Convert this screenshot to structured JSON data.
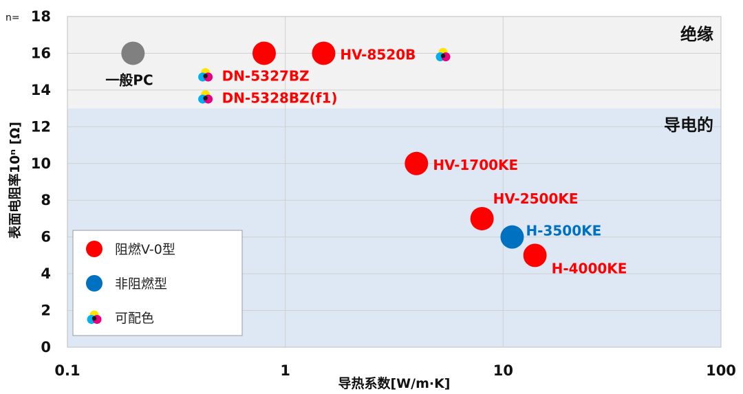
{
  "chart_data": {
    "type": "scatter",
    "x_scale": "log",
    "xlim": [
      0.1,
      100
    ],
    "ylim": [
      0,
      18
    ],
    "xlabel": "导热系数[W/m·K]",
    "ylabel": "表面电阻率10ⁿ [Ω]",
    "y_prefix": "n=",
    "x_ticks": [
      "0.1",
      "1",
      "10",
      "100"
    ],
    "y_ticks": [
      "0",
      "2",
      "4",
      "6",
      "8",
      "10",
      "12",
      "14",
      "16",
      "18"
    ],
    "grid": true,
    "regions": [
      {
        "label": "绝缘",
        "y_range": [
          13,
          18
        ],
        "color": "#f2f2f2"
      },
      {
        "label": "导电的",
        "y_range": [
          0,
          13
        ],
        "color": "#dde8f4"
      }
    ],
    "legend": {
      "position": "bottom-left",
      "items": [
        {
          "label": "阻燃V-0型",
          "marker": "red-dot"
        },
        {
          "label": "非阻燃型",
          "marker": "blue-dot"
        },
        {
          "label": "可配色",
          "marker": "cmy-icon"
        }
      ]
    },
    "points": [
      {
        "label": "一般PC",
        "x": 0.2,
        "y": 16,
        "marker": "gray-dot",
        "color": "#808080",
        "label_color": "#111111"
      },
      {
        "label": "",
        "x": 0.8,
        "y": 16,
        "marker": "red-dot",
        "color": "#ff0000"
      },
      {
        "label": "HV-8520B",
        "x": 1.5,
        "y": 16,
        "marker": "red-dot",
        "color": "#ff0000",
        "label_color": "#ff0000"
      },
      {
        "label": "",
        "x": 5.3,
        "y": 15.9,
        "marker": "cmy-icon"
      },
      {
        "label": "DN-5327BZ",
        "x": 0.43,
        "y": 14.8,
        "marker": "cmy-icon",
        "label_color": "#ff0000"
      },
      {
        "label": "DN-5328BZ(f1)",
        "x": 0.43,
        "y": 13.6,
        "marker": "cmy-icon",
        "label_color": "#ff0000"
      },
      {
        "label": "HV-1700KE",
        "x": 4.0,
        "y": 10,
        "marker": "red-dot",
        "color": "#ff0000",
        "label_color": "#ff0000"
      },
      {
        "label": "HV-2500KE",
        "x": 8.0,
        "y": 7,
        "marker": "red-dot",
        "color": "#ff0000",
        "label_color": "#ff0000"
      },
      {
        "label": "H-3500KE",
        "x": 11.0,
        "y": 6,
        "marker": "blue-dot",
        "color": "#0070c0",
        "label_color": "#0070c0"
      },
      {
        "label": "H-4000KE",
        "x": 14.0,
        "y": 5,
        "marker": "red-dot",
        "color": "#ff0000",
        "label_color": "#ff0000"
      }
    ]
  },
  "colors": {
    "red": "#ff0000",
    "blue": "#0070c0",
    "gray": "#808080",
    "cyan": "#00b0f0",
    "magenta": "#e6007e",
    "yellow": "#ffe600"
  }
}
